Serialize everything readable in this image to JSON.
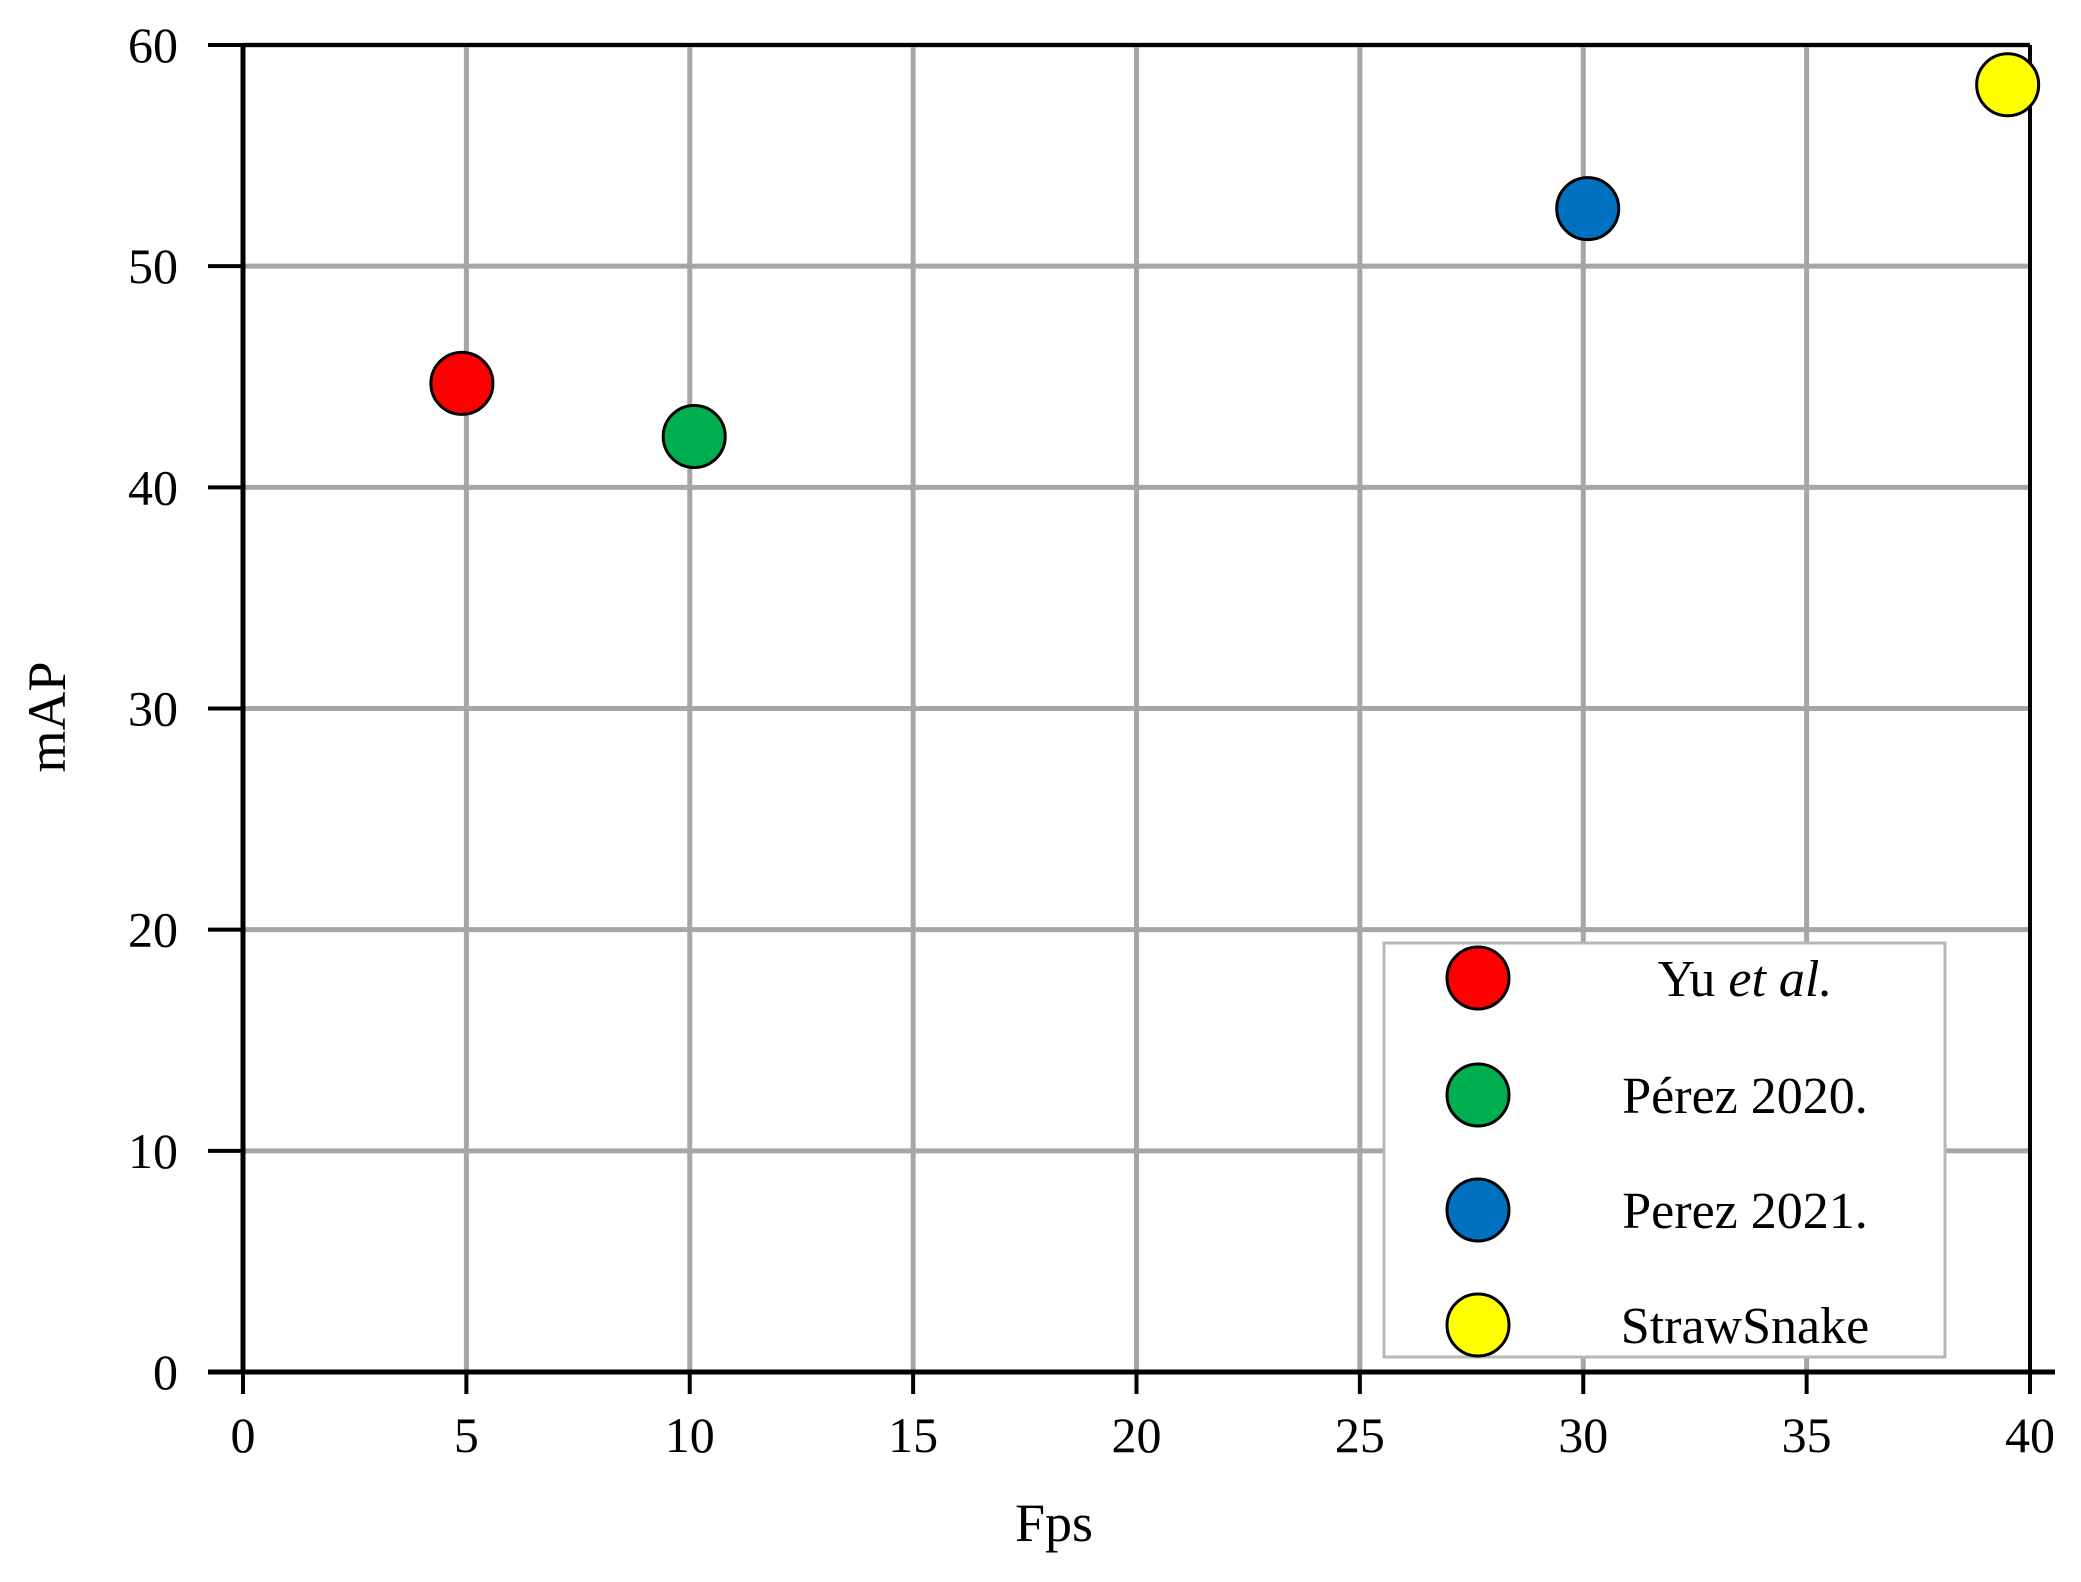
{
  "chart_data": {
    "type": "scatter",
    "xlabel": "Fps",
    "ylabel": "mAP",
    "xlim": [
      0,
      40
    ],
    "ylim": [
      0,
      60
    ],
    "xticks": [
      "0",
      "5",
      "10",
      "15",
      "20",
      "25",
      "30",
      "35",
      "40"
    ],
    "yticks": [
      "0",
      "10",
      "20",
      "30",
      "40",
      "50",
      "60"
    ],
    "grid": true,
    "legend_position": "bottom-right",
    "series": [
      {
        "name_prefix": "Yu ",
        "name_italic": "et al.",
        "name": "Yu et al.",
        "color": "#ff0000",
        "x": 4.9,
        "y": 44.7
      },
      {
        "name": "Pérez 2020.",
        "color": "#00b050",
        "x": 10.1,
        "y": 42.3
      },
      {
        "name": "Perez 2021.",
        "color": "#0070c0",
        "x": 30.1,
        "y": 52.6
      },
      {
        "name": "StrawSnake",
        "color": "#ffff00",
        "x": 39.5,
        "y": 58.2
      }
    ]
  }
}
